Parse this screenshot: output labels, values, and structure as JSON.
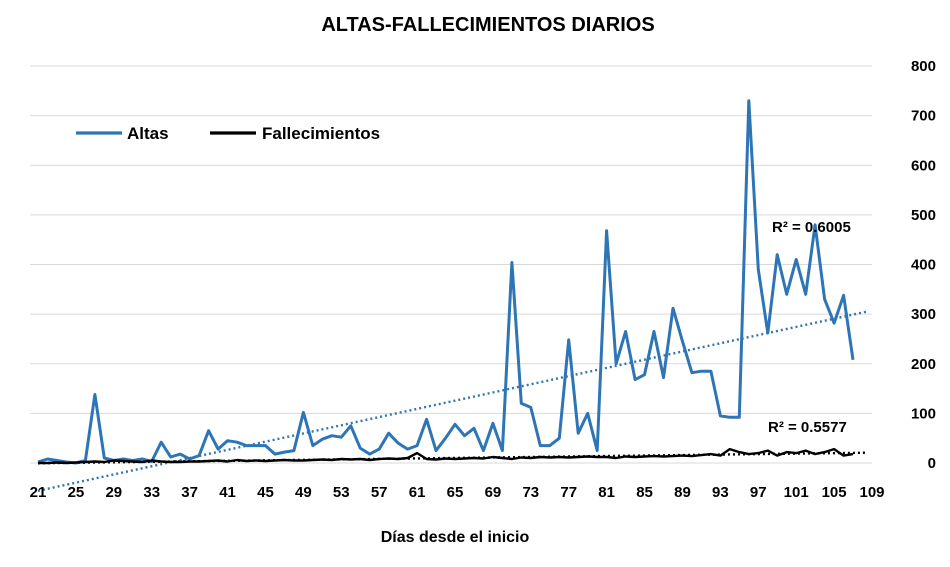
{
  "chart_data": {
    "type": "line",
    "title": "ALTAS-FALLECIMIENTOS DIARIOS",
    "xlabel": "Días  desde el inicio",
    "ylabel": "",
    "xlim": [
      21,
      109
    ],
    "ylim": [
      0,
      800
    ],
    "x_ticks": [
      21,
      25,
      29,
      33,
      37,
      41,
      45,
      49,
      53,
      57,
      61,
      65,
      69,
      73,
      77,
      81,
      85,
      89,
      93,
      97,
      101,
      105,
      109
    ],
    "y_ticks": [
      0,
      100,
      200,
      300,
      400,
      500,
      600,
      700,
      800
    ],
    "y_axis_side": "right",
    "grid": "horizontal",
    "legend_position": "top-left",
    "x": [
      21,
      22,
      23,
      24,
      25,
      26,
      27,
      28,
      29,
      30,
      31,
      32,
      33,
      34,
      35,
      36,
      37,
      38,
      39,
      40,
      41,
      42,
      43,
      44,
      45,
      46,
      47,
      48,
      49,
      50,
      51,
      52,
      53,
      54,
      55,
      56,
      57,
      58,
      59,
      60,
      61,
      62,
      63,
      64,
      65,
      66,
      67,
      68,
      69,
      70,
      71,
      72,
      73,
      74,
      75,
      76,
      77,
      78,
      79,
      80,
      81,
      82,
      83,
      84,
      85,
      86,
      87,
      88,
      89,
      90,
      91,
      92,
      93,
      94,
      95,
      96,
      97,
      98,
      99,
      100,
      101,
      102,
      103,
      104,
      105,
      106,
      107
    ],
    "series": [
      {
        "name": "Altas",
        "color": "#2e75b6",
        "values": [
          2,
          8,
          5,
          2,
          0,
          5,
          138,
          10,
          5,
          8,
          5,
          8,
          3,
          42,
          12,
          18,
          8,
          15,
          65,
          28,
          45,
          42,
          35,
          35,
          35,
          18,
          22,
          25,
          102,
          35,
          48,
          55,
          52,
          75,
          30,
          18,
          28,
          60,
          40,
          28,
          35,
          88,
          25,
          50,
          78,
          55,
          70,
          25,
          80,
          25,
          404,
          120,
          112,
          35,
          35,
          50,
          248,
          60,
          100,
          25,
          468,
          200,
          265,
          168,
          178,
          265,
          172,
          312,
          245,
          182,
          185,
          185,
          95,
          92,
          92,
          730,
          390,
          262,
          420,
          340,
          410,
          340,
          480,
          330,
          282,
          338,
          208
        ]
      },
      {
        "name": "Fallecimientos",
        "color": "#000000",
        "values": [
          0,
          0,
          1,
          0,
          1,
          2,
          3,
          2,
          5,
          4,
          3,
          2,
          5,
          3,
          2,
          2,
          3,
          3,
          4,
          5,
          3,
          6,
          4,
          5,
          4,
          5,
          6,
          5,
          5,
          6,
          7,
          6,
          8,
          7,
          8,
          6,
          8,
          9,
          8,
          10,
          20,
          8,
          7,
          9,
          8,
          9,
          10,
          9,
          12,
          10,
          8,
          11,
          10,
          12,
          11,
          12,
          11,
          12,
          13,
          12,
          12,
          10,
          13,
          12,
          13,
          14,
          13,
          14,
          15,
          14,
          16,
          18,
          15,
          28,
          22,
          18,
          20,
          25,
          15,
          22,
          20,
          25,
          18,
          22,
          28,
          15,
          18
        ]
      }
    ],
    "trendlines": [
      {
        "series": "Altas",
        "label": "R² = 0.6005",
        "style": "dotted"
      },
      {
        "series": "Fallecimientos",
        "label": "R² = 0.5577",
        "style": "dotted"
      }
    ]
  }
}
